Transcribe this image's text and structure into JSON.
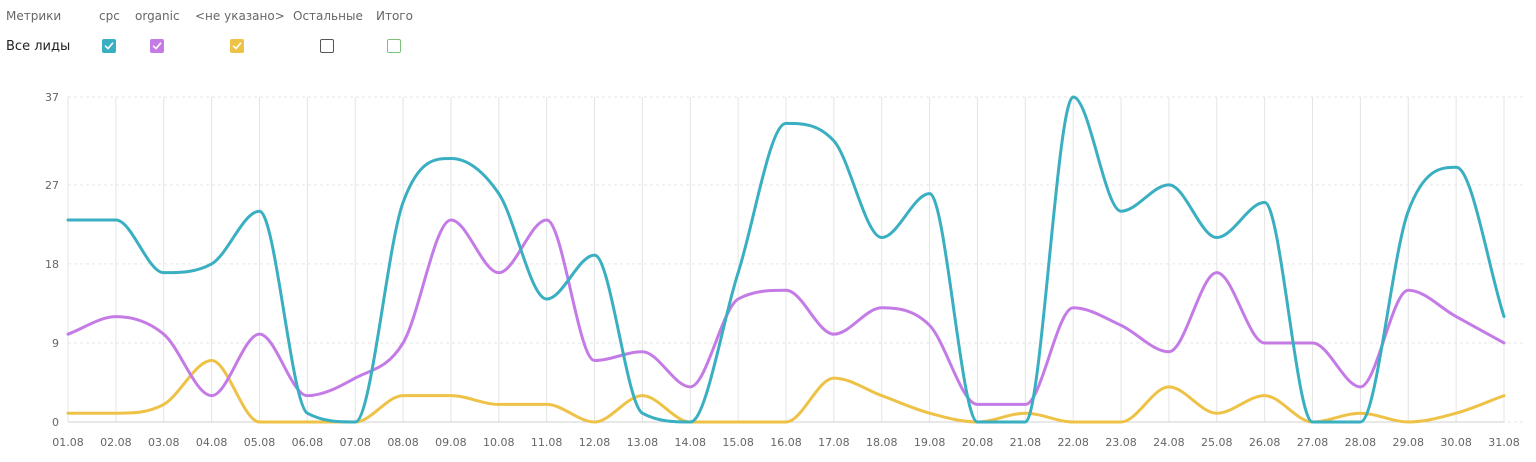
{
  "metrics_header": {
    "label": "Метрики",
    "columns": [
      {
        "label": "cpc",
        "checked": true,
        "color": "#3AAFC1"
      },
      {
        "label": "organic",
        "checked": true,
        "color": "#C57BE6"
      },
      {
        "label": "<не указано>",
        "checked": true,
        "color": "#EEC246"
      },
      {
        "label": "Остальные",
        "checked": false,
        "color": "#555555"
      },
      {
        "label": "Итого",
        "checked": false,
        "color": "#7BC27B"
      }
    ]
  },
  "row": {
    "label": "Все лиды"
  },
  "chart_data": {
    "type": "line",
    "x": [
      "01.08",
      "02.08",
      "03.08",
      "04.08",
      "05.08",
      "06.08",
      "07.08",
      "08.08",
      "09.08",
      "10.08",
      "11.08",
      "12.08",
      "13.08",
      "14.08",
      "15.08",
      "16.08",
      "17.08",
      "18.08",
      "19.08",
      "20.08",
      "21.08",
      "22.08",
      "23.08",
      "24.08",
      "25.08",
      "26.08",
      "27.08",
      "28.08",
      "29.08",
      "30.08",
      "31.08"
    ],
    "yticks": [
      "0",
      "9",
      "18",
      "27",
      "37"
    ],
    "ylim": [
      0,
      37
    ],
    "grid": true,
    "series": [
      {
        "name": "cpc",
        "color": "#3AAFC1",
        "values": [
          23,
          23,
          17,
          18,
          24,
          1,
          0,
          25,
          30,
          26,
          14,
          19,
          1,
          0,
          17,
          34,
          32,
          21,
          26,
          0,
          0,
          37,
          24,
          27,
          21,
          25,
          0,
          0,
          24,
          29,
          12
        ]
      },
      {
        "name": "organic",
        "color": "#C57BE6",
        "values": [
          10,
          12,
          10,
          3,
          10,
          3,
          5,
          9,
          23,
          17,
          23,
          7,
          8,
          4,
          14,
          15,
          10,
          13,
          11,
          2,
          2,
          13,
          11,
          8,
          17,
          9,
          9,
          4,
          15,
          12,
          9
        ]
      },
      {
        "name": "<не указано>",
        "color": "#EEC246",
        "values": [
          1,
          1,
          2,
          7,
          0,
          0,
          0,
          3,
          3,
          2,
          2,
          0,
          3,
          0,
          0,
          0,
          5,
          3,
          1,
          0,
          1,
          0,
          0,
          4,
          1,
          3,
          0,
          1,
          0,
          1,
          3
        ]
      }
    ]
  }
}
